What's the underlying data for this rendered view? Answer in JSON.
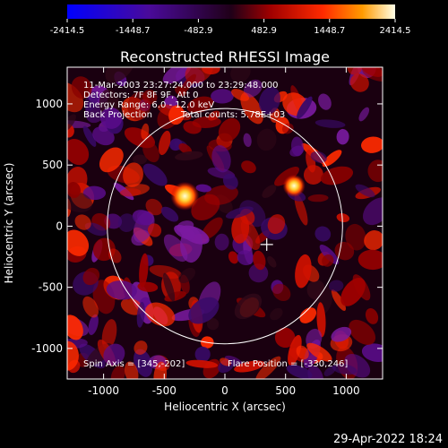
{
  "footer": {
    "timestamp": "29-Apr-2022 18:24"
  },
  "colors": {
    "background": "#000000",
    "foreground": "#ffffff",
    "limb": "#ffffff"
  },
  "chart_data": {
    "type": "heatmap",
    "title": "Reconstructed RHESSI Image",
    "xlabel": "Heliocentric X (arcsec)",
    "ylabel": "Heliocentric Y (arcsec)",
    "xlim": [
      -1300,
      1300
    ],
    "ylim": [
      -1250,
      1300
    ],
    "xticks": [
      -1000,
      -500,
      0,
      500,
      1000
    ],
    "yticks": [
      -1000,
      -500,
      0,
      500,
      1000
    ],
    "colorbar": {
      "ticks": [
        -2414.5,
        -1448.7,
        -482.9,
        482.9,
        1448.7,
        2414.5
      ],
      "tick_labels": [
        "-2414.5",
        "-1448.7",
        "-482.9",
        "482.9",
        "1448.7",
        "2414.5"
      ],
      "range": [
        -2414.5,
        2414.5
      ]
    },
    "info_lines": [
      "11-Mar-2003 23:27:24.000 to 23:29:48.000",
      "Detectors: 7F 8F 9F, Att 0",
      "Energy Range: 6.0 - 12.0 keV",
      "Back Projection",
      "Total counts: 5.78E+03"
    ],
    "spin_axis": "Spin Axis = [345,-202]",
    "flare_position": "Flare Position = [-330,246]",
    "limb_radius": 970,
    "sources": [
      {
        "x": -330,
        "y": 246,
        "value": 2414.5
      },
      {
        "x": 570,
        "y": 330,
        "value": 1900
      }
    ],
    "cross": {
      "x": 345,
      "y": -150
    }
  }
}
